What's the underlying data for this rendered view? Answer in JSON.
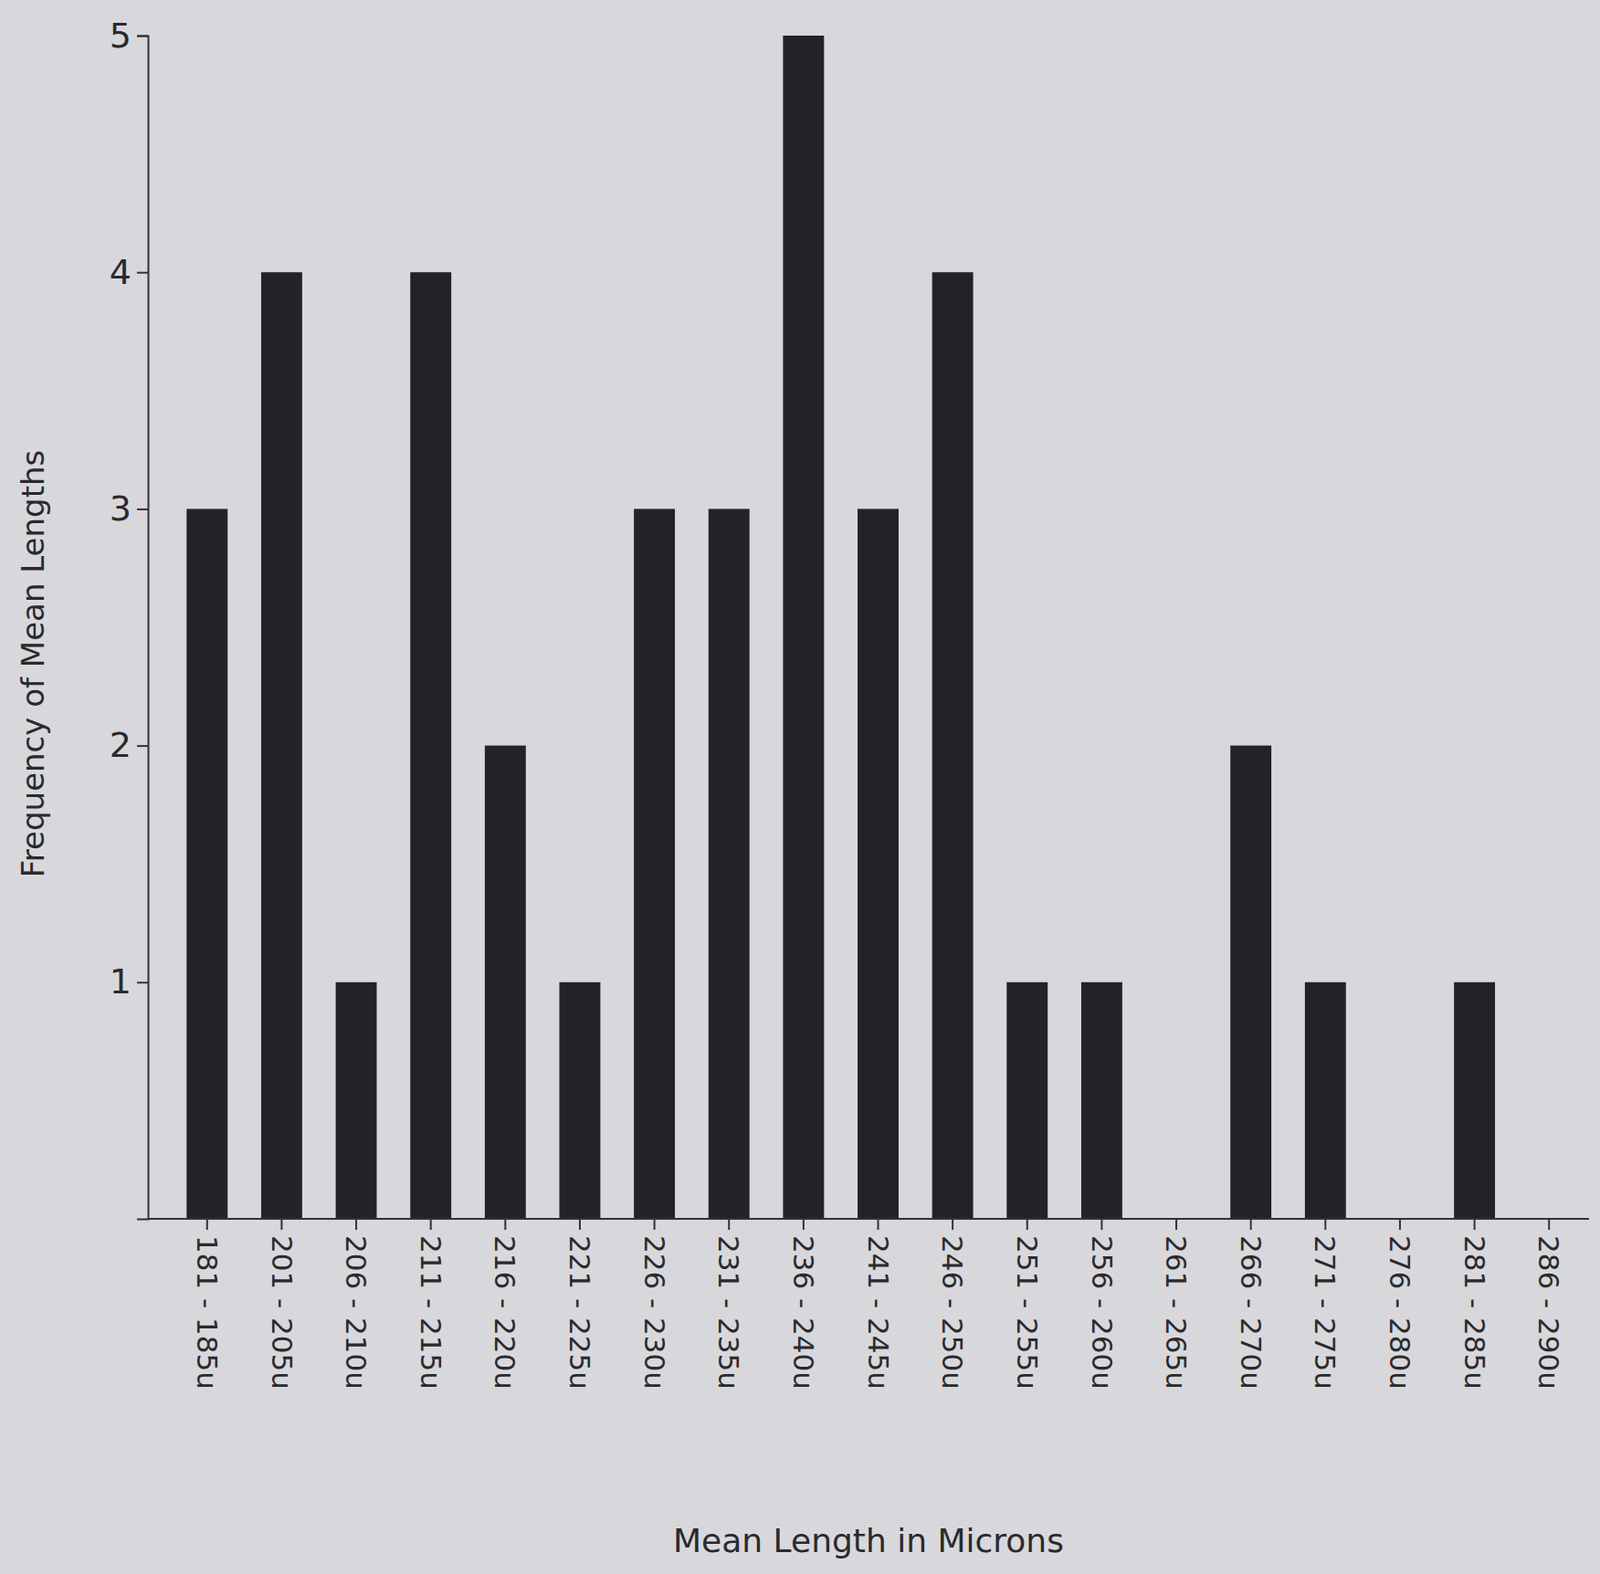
{
  "chart_data": {
    "type": "bar",
    "x_label": "Mean Length in Microns",
    "y_label": "Frequency of Mean Lengths",
    "categories": [
      "181 - 185u",
      "201 - 205u",
      "206 - 210u",
      "211 - 215u",
      "216 - 220u",
      "221 - 225u",
      "226 - 230u",
      "231 - 235u",
      "236 - 240u",
      "241 - 245u",
      "246 - 250u",
      "251 - 255u",
      "256 - 260u",
      "261 - 265u",
      "266 - 270u",
      "271 - 275u",
      "276 - 280u",
      "281 - 285u",
      "286 - 290u"
    ],
    "values": [
      3,
      4,
      1,
      4,
      2,
      1,
      3,
      3,
      5,
      3,
      4,
      1,
      1,
      0,
      2,
      1,
      0,
      1,
      0
    ],
    "color": "#232226",
    "ylim": [
      0,
      5
    ],
    "yticks": [
      1,
      2,
      3,
      4,
      5
    ],
    "grid": false
  }
}
